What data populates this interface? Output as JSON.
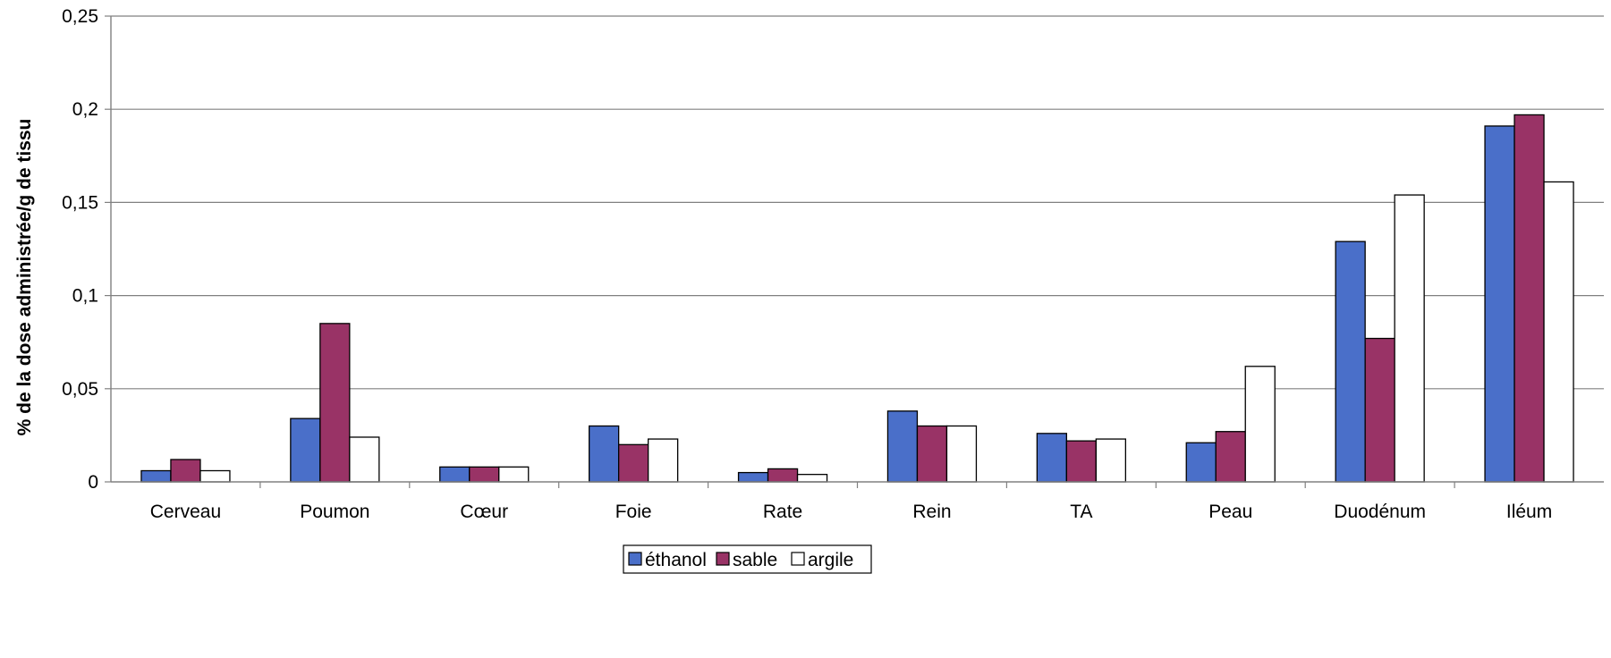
{
  "chart_data": {
    "type": "bar",
    "title": "",
    "xlabel": "",
    "ylabel": "% de la dose administrée/g de tissu",
    "ylim": [
      0,
      0.25
    ],
    "yticks": [
      0,
      0.05,
      0.1,
      0.15,
      0.2,
      0.25
    ],
    "ytick_labels": [
      "0",
      "0,05",
      "0,1",
      "0,15",
      "0,2",
      "0,25"
    ],
    "grid": true,
    "legend_position": "bottom-center",
    "categories": [
      "Cerveau",
      "Poumon",
      "Cœur",
      "Foie",
      "Rate",
      "Rein",
      "TA",
      "Peau",
      "Duodénum",
      "Iléum"
    ],
    "series": [
      {
        "name": "éthanol",
        "color": "#4a6fc9",
        "values": [
          0.006,
          0.034,
          0.008,
          0.03,
          0.005,
          0.038,
          0.026,
          0.021,
          0.129,
          0.191
        ]
      },
      {
        "name": "sable",
        "color": "#993366",
        "values": [
          0.012,
          0.085,
          0.008,
          0.02,
          0.007,
          0.03,
          0.022,
          0.027,
          0.077,
          0.197
        ]
      },
      {
        "name": "argile",
        "color": "#ffffff",
        "values": [
          0.006,
          0.024,
          0.008,
          0.023,
          0.004,
          0.03,
          0.023,
          0.062,
          0.154,
          0.161
        ]
      }
    ]
  }
}
